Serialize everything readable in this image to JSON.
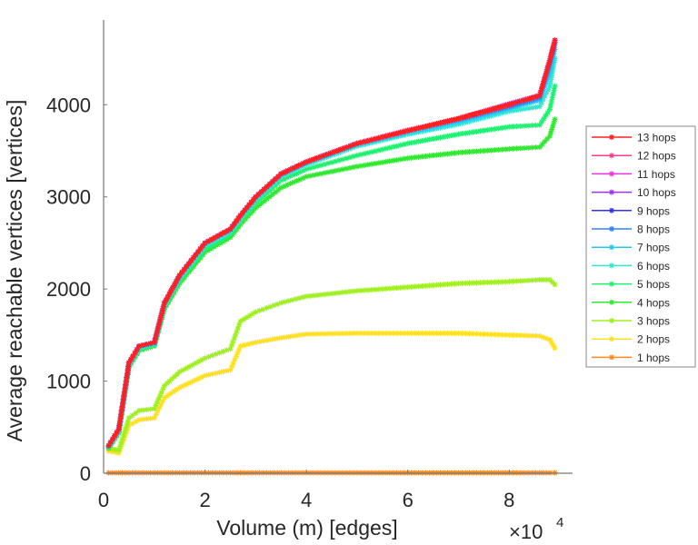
{
  "chart_data": {
    "type": "line",
    "title": "",
    "xlabel": "Volume (m) [edges]",
    "ylabel": "Average reachable vertices [vertices]",
    "x_multiplier_label": "×10",
    "x_multiplier_exponent": "4",
    "xlim": [
      0,
      9.25
    ],
    "ylim": [
      0,
      4920
    ],
    "xticks": [
      0,
      2,
      4,
      6,
      8
    ],
    "xtick_labels": [
      "0",
      "2",
      "4",
      "6",
      "8"
    ],
    "yticks": [
      0,
      1000,
      2000,
      3000,
      4000
    ],
    "ytick_labels": [
      "0",
      "1000",
      "2000",
      "3000",
      "4000"
    ],
    "grid": false,
    "legend_position": "right",
    "x": [
      0.1,
      0.3,
      0.5,
      0.7,
      1.0,
      1.2,
      1.5,
      2.0,
      2.5,
      2.7,
      3.0,
      3.5,
      4.0,
      5.0,
      6.0,
      7.0,
      8.0,
      8.6,
      8.8,
      8.9
    ],
    "series": [
      {
        "name": "13 hops",
        "color": "#ff2020",
        "values": [
          300,
          480,
          1200,
          1380,
          1420,
          1850,
          2150,
          2500,
          2650,
          2800,
          3000,
          3250,
          3380,
          3580,
          3720,
          3850,
          4000,
          4100,
          4480,
          4700
        ]
      },
      {
        "name": "12 hops",
        "color": "#ff3d8a",
        "values": [
          300,
          480,
          1200,
          1380,
          1420,
          1850,
          2150,
          2500,
          2650,
          2800,
          3000,
          3250,
          3380,
          3580,
          3720,
          3850,
          4000,
          4100,
          4480,
          4700
        ]
      },
      {
        "name": "11 hops",
        "color": "#f030e0",
        "values": [
          300,
          480,
          1200,
          1380,
          1420,
          1850,
          2150,
          2500,
          2650,
          2800,
          3000,
          3250,
          3380,
          3580,
          3720,
          3850,
          4000,
          4100,
          4480,
          4700
        ]
      },
      {
        "name": "10 hops",
        "color": "#a030ff",
        "values": [
          300,
          480,
          1200,
          1380,
          1420,
          1850,
          2150,
          2500,
          2650,
          2800,
          3000,
          3250,
          3380,
          3580,
          3720,
          3850,
          4010,
          4100,
          4480,
          4700
        ]
      },
      {
        "name": "9 hops",
        "color": "#3030f0",
        "values": [
          300,
          480,
          1200,
          1380,
          1420,
          1850,
          2150,
          2500,
          2650,
          2800,
          3000,
          3250,
          3380,
          3580,
          3720,
          3850,
          4000,
          4100,
          4480,
          4680
        ]
      },
      {
        "name": "8 hops",
        "color": "#3080ff",
        "values": [
          300,
          480,
          1200,
          1380,
          1420,
          1850,
          2150,
          2500,
          2650,
          2800,
          3000,
          3250,
          3380,
          3580,
          3720,
          3840,
          3980,
          4080,
          4450,
          4660
        ]
      },
      {
        "name": "7 hops",
        "color": "#20c8f0",
        "values": [
          295,
          470,
          1190,
          1370,
          1410,
          1840,
          2140,
          2490,
          2640,
          2790,
          2990,
          3240,
          3370,
          3570,
          3700,
          3820,
          3960,
          4050,
          4350,
          4600
        ]
      },
      {
        "name": "6 hops",
        "color": "#30e8d0",
        "values": [
          290,
          460,
          1180,
          1360,
          1400,
          1820,
          2120,
          2470,
          2620,
          2770,
          2970,
          3220,
          3350,
          3550,
          3680,
          3790,
          3930,
          3980,
          4200,
          4500
        ]
      },
      {
        "name": "5 hops",
        "color": "#20f070",
        "values": [
          280,
          450,
          1170,
          1340,
          1390,
          1800,
          2090,
          2430,
          2590,
          2740,
          2930,
          3180,
          3300,
          3450,
          3580,
          3680,
          3760,
          3780,
          3950,
          4200
        ]
      },
      {
        "name": "4 hops",
        "color": "#30e830",
        "values": [
          270,
          440,
          1150,
          1330,
          1380,
          1780,
          2060,
          2400,
          2560,
          2700,
          2880,
          3100,
          3220,
          3330,
          3420,
          3480,
          3520,
          3540,
          3660,
          3840
        ]
      },
      {
        "name": "3 hops",
        "color": "#a0f020",
        "values": [
          270,
          250,
          600,
          680,
          700,
          950,
          1100,
          1250,
          1350,
          1650,
          1750,
          1850,
          1920,
          1980,
          2020,
          2060,
          2080,
          2100,
          2100,
          2050
        ]
      },
      {
        "name": "2 hops",
        "color": "#ffe020",
        "values": [
          240,
          220,
          520,
          580,
          600,
          820,
          930,
          1060,
          1120,
          1380,
          1420,
          1470,
          1510,
          1520,
          1520,
          1520,
          1500,
          1490,
          1450,
          1360
        ]
      },
      {
        "name": "1 hops",
        "color": "#ff8a20",
        "values": [
          5,
          5,
          5,
          5,
          5,
          5,
          5,
          5,
          5,
          5,
          5,
          5,
          5,
          5,
          5,
          5,
          5,
          5,
          5,
          5
        ]
      }
    ]
  }
}
